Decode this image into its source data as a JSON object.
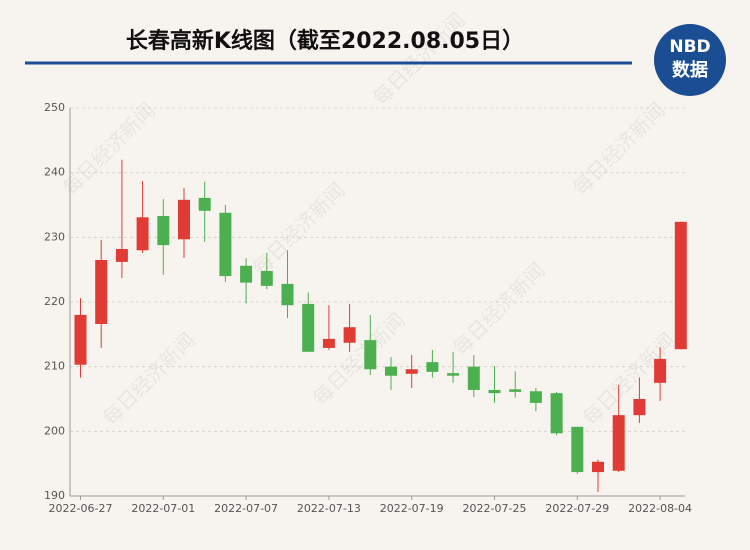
{
  "chart_data": {
    "type": "candlestick",
    "title": "长春高新K线图（截至2022.08.05日）",
    "logo": {
      "top": "NBD",
      "bottom": "数据"
    },
    "watermark": "每日经济新闻",
    "categories": [
      "2022-06-27",
      null,
      null,
      null,
      "2022-07-01",
      null,
      null,
      null,
      "2022-07-07",
      null,
      null,
      null,
      "2022-07-13",
      null,
      null,
      null,
      "2022-07-19",
      null,
      null,
      null,
      "2022-07-25",
      null,
      null,
      null,
      "2022-07-29",
      null,
      null,
      null,
      "2022-08-04",
      null
    ],
    "open": [
      210.3,
      216.6,
      226.2,
      228.0,
      233.3,
      229.7,
      236.1,
      233.8,
      225.6,
      224.8,
      222.8,
      219.7,
      212.9,
      213.7,
      214.1,
      210.0,
      208.9,
      210.7,
      209.0,
      210.0,
      206.4,
      206.5,
      206.2,
      205.9,
      200.7,
      193.7,
      193.9,
      202.5,
      207.5,
      212.7
    ],
    "high": [
      220.6,
      229.6,
      242.0,
      238.7,
      235.9,
      237.6,
      238.6,
      235.0,
      226.8,
      227.6,
      228.0,
      221.5,
      219.5,
      219.7,
      218.0,
      211.5,
      211.8,
      212.6,
      212.3,
      211.8,
      210.1,
      209.3,
      206.7,
      206.1,
      200.7,
      195.6,
      207.2,
      208.3,
      213.0,
      232.4
    ],
    "low": [
      208.3,
      212.9,
      223.7,
      227.6,
      224.2,
      226.8,
      229.3,
      223.1,
      219.8,
      222.0,
      217.5,
      212.3,
      212.6,
      212.3,
      208.7,
      206.4,
      206.7,
      208.3,
      207.5,
      205.3,
      204.4,
      205.2,
      203.1,
      199.4,
      193.4,
      190.6,
      193.7,
      201.3,
      204.7,
      212.7
    ],
    "close": [
      218.0,
      226.5,
      228.2,
      233.1,
      228.8,
      235.8,
      234.1,
      224.0,
      223.0,
      222.5,
      219.5,
      212.3,
      214.3,
      216.1,
      209.6,
      208.6,
      209.6,
      209.2,
      208.6,
      206.4,
      205.9,
      206.1,
      204.4,
      199.7,
      193.7,
      195.3,
      202.5,
      205.0,
      211.2,
      232.4
    ],
    "up_color": "#e03c35",
    "down_color": "#4caf50",
    "ylim": [
      190,
      250
    ],
    "yticks": [
      190,
      200,
      210,
      220,
      230,
      240,
      250
    ],
    "grid": true
  }
}
